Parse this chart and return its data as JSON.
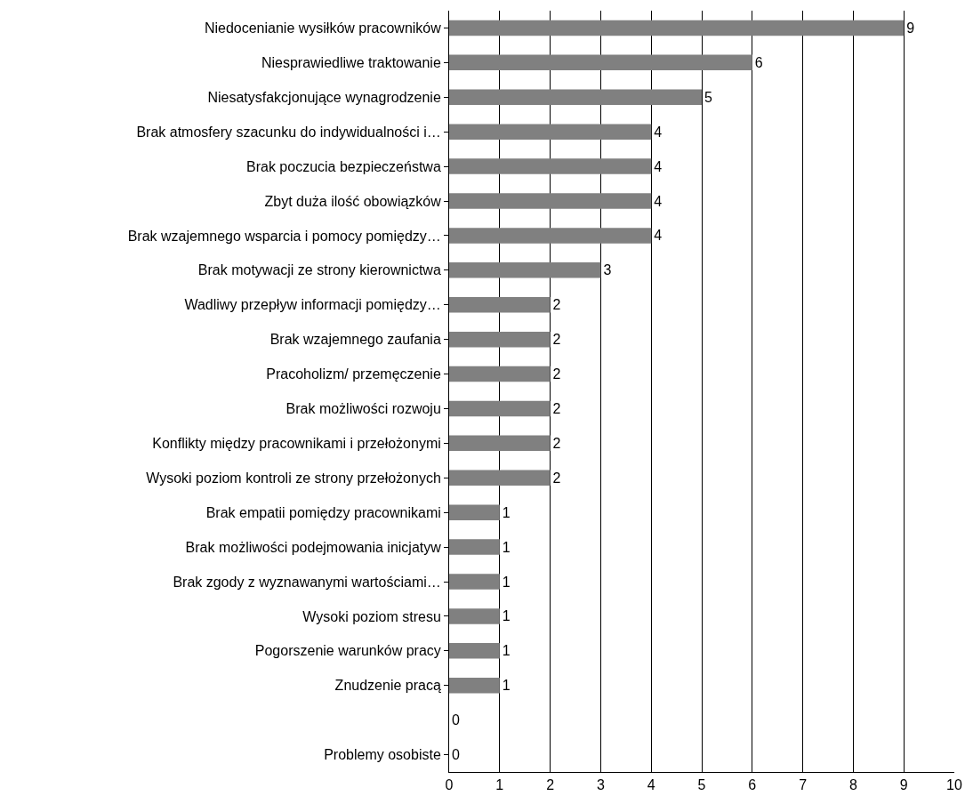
{
  "chart_data": {
    "type": "bar",
    "orientation": "horizontal",
    "categories": [
      "Niedocenianie wysiłków pracowników",
      "Niesprawiedliwe traktowanie",
      "Niesatysfakcjonujące wynagrodzenie",
      "Brak atmosfery szacunku do indywidualności i…",
      "Brak poczucia bezpieczeństwa",
      "Zbyt duża ilość obowiązków",
      "Brak wzajemnego wsparcia i pomocy pomiędzy…",
      "Brak motywacji ze strony kierownictwa",
      "Wadliwy przepływ informacji pomiędzy…",
      "Brak wzajemnego zaufania",
      "Pracoholizm/ przemęczenie",
      "Brak możliwości rozwoju",
      "Konflikty między pracownikami i przełożonymi",
      "Wysoki poziom kontroli ze strony przełożonych",
      "Brak empatii pomiędzy pracownikami",
      "Brak możliwości podejmowania inicjatyw",
      "Brak zgody z wyznawanymi wartościami…",
      "Wysoki poziom stresu",
      "Pogorszenie warunków pracy",
      "Znudzenie pracą",
      null,
      "Problemy osobiste"
    ],
    "values": [
      9,
      6,
      5,
      4,
      4,
      4,
      4,
      3,
      2,
      2,
      2,
      2,
      2,
      2,
      1,
      1,
      1,
      1,
      1,
      1,
      0,
      0
    ],
    "color": "#808080",
    "xlim": [
      0,
      10
    ],
    "xticks": [
      0,
      1,
      2,
      3,
      4,
      5,
      6,
      7,
      8,
      9,
      10
    ],
    "grid": "x",
    "data_labels": true,
    "legend": false
  }
}
